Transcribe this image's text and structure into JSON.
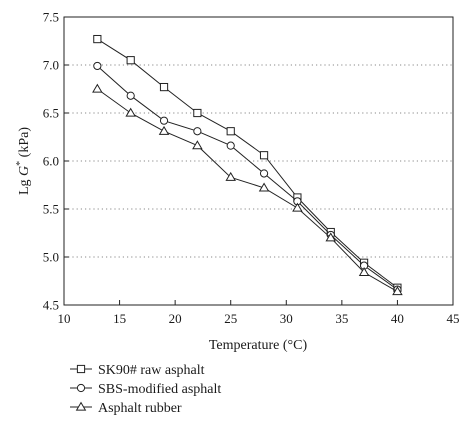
{
  "chart_data": {
    "type": "line",
    "xlabel": "Temperature (°C)",
    "ylabel_prefix": "Lg ",
    "ylabel_var": "G",
    "ylabel_sup": "*",
    "ylabel_unit": " (kPa)",
    "xlim": [
      10,
      45
    ],
    "ylim": [
      4.5,
      7.5
    ],
    "x_ticks": [
      "10",
      "15",
      "20",
      "25",
      "30",
      "35",
      "40",
      "45"
    ],
    "y_ticks": [
      "4.5",
      "5.0",
      "5.5",
      "6.0",
      "6.5",
      "7.0",
      "7.5"
    ],
    "grid": "horizontal dotted",
    "legend_position": "below",
    "series": [
      {
        "name": "SK90# raw asphalt",
        "marker": "square",
        "x": [
          13,
          16,
          19,
          22,
          25,
          28,
          31,
          34,
          37,
          40
        ],
        "y": [
          7.27,
          7.05,
          6.77,
          6.5,
          6.31,
          6.06,
          5.62,
          5.26,
          4.94,
          4.68
        ]
      },
      {
        "name": "SBS-modified asphalt",
        "marker": "circle",
        "x": [
          13,
          16,
          19,
          22,
          25,
          28,
          31,
          34,
          37,
          40
        ],
        "y": [
          6.99,
          6.68,
          6.42,
          6.31,
          6.16,
          5.87,
          5.58,
          5.23,
          4.91,
          4.66
        ]
      },
      {
        "name": "Asphalt rubber",
        "marker": "triangle",
        "x": [
          13,
          16,
          19,
          22,
          25,
          28,
          31,
          34,
          37,
          40
        ],
        "y": [
          6.75,
          6.5,
          6.31,
          6.16,
          5.83,
          5.72,
          5.51,
          5.2,
          4.84,
          4.64
        ]
      }
    ]
  }
}
